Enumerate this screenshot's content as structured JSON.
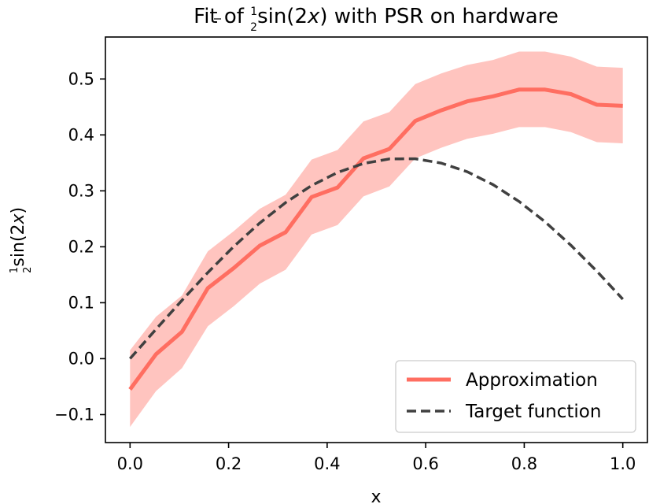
{
  "chart_data": {
    "type": "line",
    "title": {
      "prefix": "Fit of ",
      "frac_num": "1",
      "frac_den": "2",
      "func": "sin(2",
      "var": "x",
      "suffix": ") with PSR on hardware"
    },
    "xlabel": "x",
    "ylabel": {
      "frac_num": "1",
      "frac_den": "2",
      "func": "sin(2",
      "var": "x",
      "suffix": ")"
    },
    "xlim": [
      -0.05,
      1.05
    ],
    "ylim": [
      -0.15,
      0.575
    ],
    "xticks": [
      0.0,
      0.2,
      0.4,
      0.6,
      0.8,
      1.0
    ],
    "xtick_labels": [
      "0.0",
      "0.2",
      "0.4",
      "0.6",
      "0.8",
      "1.0"
    ],
    "yticks": [
      -0.1,
      0.0,
      0.1,
      0.2,
      0.3,
      0.4,
      0.5
    ],
    "ytick_labels": [
      "−0.1",
      "0.0",
      "0.1",
      "0.2",
      "0.3",
      "0.4",
      "0.5"
    ],
    "x": [
      0.0,
      0.0526,
      0.1053,
      0.1579,
      0.2105,
      0.2632,
      0.3158,
      0.3684,
      0.4211,
      0.4737,
      0.5263,
      0.5789,
      0.6316,
      0.6842,
      0.7368,
      0.7895,
      0.8421,
      0.8947,
      0.9474,
      1.0
    ],
    "series": [
      {
        "name": "Approximation",
        "color": "#ff6e61",
        "line_style": "solid",
        "values": [
          -0.055,
          0.008,
          0.048,
          0.126,
          0.162,
          0.202,
          0.226,
          0.289,
          0.306,
          0.358,
          0.375,
          0.425,
          0.444,
          0.46,
          0.469,
          0.481,
          0.481,
          0.473,
          0.454,
          0.452
        ],
        "band_upper": [
          0.015,
          0.075,
          0.113,
          0.192,
          0.228,
          0.268,
          0.293,
          0.356,
          0.373,
          0.424,
          0.441,
          0.491,
          0.51,
          0.525,
          0.534,
          0.549,
          0.549,
          0.54,
          0.522,
          0.52
        ],
        "band_lower": [
          -0.122,
          -0.058,
          -0.017,
          0.058,
          0.094,
          0.134,
          0.159,
          0.222,
          0.239,
          0.29,
          0.308,
          0.358,
          0.377,
          0.393,
          0.402,
          0.414,
          0.414,
          0.405,
          0.387,
          0.385
        ],
        "band_color": "#ffc4bf"
      },
      {
        "name": "Target function",
        "color": "#404040",
        "line_style": "dashed",
        "values": [
          0.0,
          0.0526,
          0.1043,
          0.154,
          0.2005,
          0.2425,
          0.2791,
          0.3095,
          0.3329,
          0.3489,
          0.3571,
          0.3574,
          0.3496,
          0.3341,
          0.3111,
          0.2811,
          0.2447,
          0.2028,
          0.1564,
          0.1064
        ]
      }
    ],
    "legend_position": "lower-right",
    "legend": [
      "Approximation",
      "Target function"
    ]
  }
}
